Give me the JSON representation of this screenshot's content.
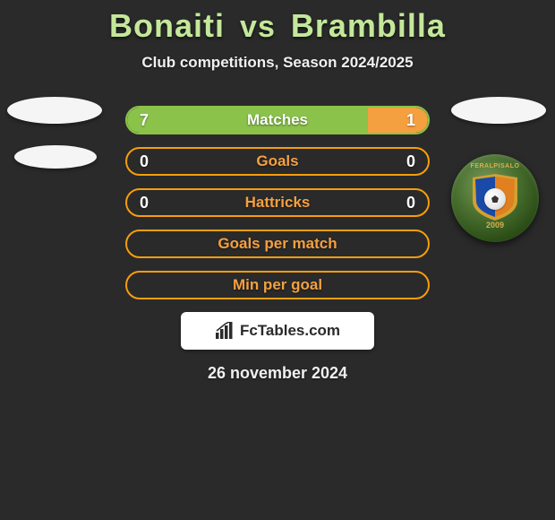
{
  "header": {
    "player1": "Bonaiti",
    "vs": "vs",
    "player2": "Brambilla",
    "subtitle": "Club competitions, Season 2024/2025",
    "title_color": "#c4e89a"
  },
  "crest": {
    "top_text": "FERALPISALO",
    "year": "2009"
  },
  "colors": {
    "green_border": "#8bc34a",
    "green_fill": "#8bc34a",
    "orange_border": "#f59e0b",
    "orange_fill": "#f5a040",
    "background": "#2a2a2a",
    "text": "#ffffff"
  },
  "bars": [
    {
      "label": "Matches",
      "left_value": "7",
      "right_value": "1",
      "left_pct": 80,
      "right_pct": 20,
      "left_color": "#8bc34a",
      "right_color": "#f5a040",
      "border_color": "#8bc34a",
      "label_color": "#ffffff"
    },
    {
      "label": "Goals",
      "left_value": "0",
      "right_value": "0",
      "left_pct": 0,
      "right_pct": 0,
      "left_color": "#8bc34a",
      "right_color": "#f5a040",
      "border_color": "#f59e0b",
      "label_color": "#f5a040"
    },
    {
      "label": "Hattricks",
      "left_value": "0",
      "right_value": "0",
      "left_pct": 0,
      "right_pct": 0,
      "left_color": "#8bc34a",
      "right_color": "#f5a040",
      "border_color": "#f59e0b",
      "label_color": "#f5a040"
    },
    {
      "label": "Goals per match",
      "left_value": "",
      "right_value": "",
      "left_pct": 0,
      "right_pct": 0,
      "left_color": "#8bc34a",
      "right_color": "#f5a040",
      "border_color": "#f59e0b",
      "label_color": "#f5a040"
    },
    {
      "label": "Min per goal",
      "left_value": "",
      "right_value": "",
      "left_pct": 0,
      "right_pct": 0,
      "left_color": "#8bc34a",
      "right_color": "#f5a040",
      "border_color": "#f59e0b",
      "label_color": "#f5a040"
    }
  ],
  "attribution": {
    "text": "FcTables.com"
  },
  "date": "26 november 2024"
}
